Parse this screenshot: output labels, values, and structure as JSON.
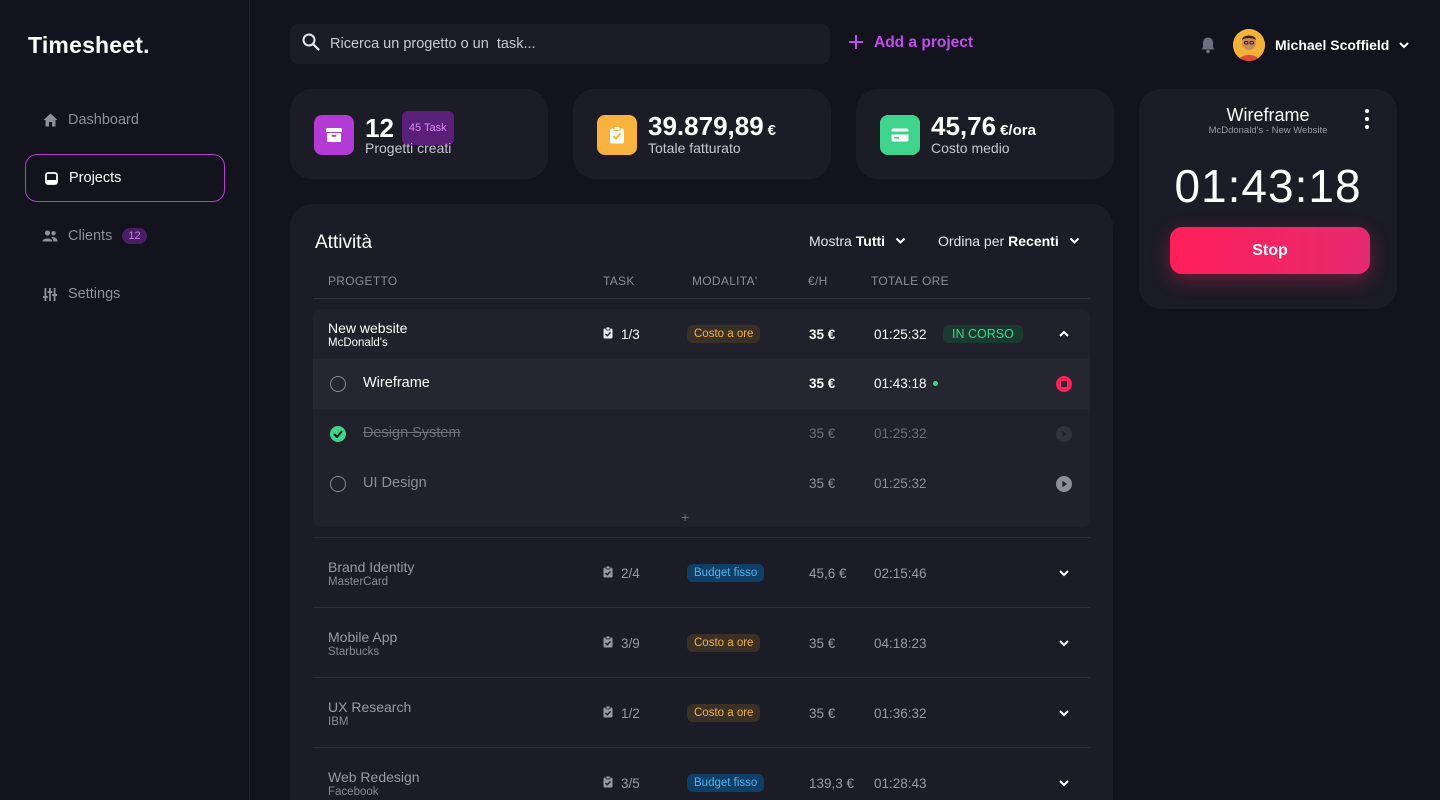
{
  "sidebar": {
    "logo": "Timesheet.",
    "items": [
      {
        "label": "Dashboard",
        "icon": "home-icon"
      },
      {
        "label": "Projects",
        "icon": "inbox-icon",
        "active": true
      },
      {
        "label": "Clients",
        "icon": "users-icon",
        "badge": "12"
      },
      {
        "label": "Settings",
        "icon": "sliders-icon"
      }
    ]
  },
  "topbar": {
    "search_placeholder": "Ricerca un progetto o un  task...",
    "add_project": "Add a project",
    "user_name": "Michael Scoffield"
  },
  "stats": [
    {
      "value": "12",
      "badge": "45 Task",
      "label": "Progetti  creati",
      "color": "#b43ad6"
    },
    {
      "value": "39.879,89",
      "unit": "€",
      "label": "Totale fatturato",
      "color": "#f7b23f"
    },
    {
      "value": "45,76",
      "unit": "€/ora",
      "label": "Costo medio",
      "color": "#3fd48c"
    }
  ],
  "activity": {
    "title": "Attività",
    "filter_show_label": "Mostra",
    "filter_show_value": "Tutti",
    "filter_sort_label": "Ordina per",
    "filter_sort_value": "Recenti",
    "headers": [
      "PROGETTO",
      "TASK",
      "MODALITA'",
      "€/H",
      "TOTALE ORE"
    ],
    "expanded": {
      "name": "New website",
      "client": "McDonald's",
      "tasks": "1/3",
      "mode": "Costo a ore",
      "rate": "35 €",
      "hours": "01:25:32",
      "status": "IN CORSO",
      "subtasks": [
        {
          "name": "Wireframe",
          "rate": "35 €",
          "hours": "01:43:18",
          "state": "running"
        },
        {
          "name": "Design System",
          "rate": "35 €",
          "hours": "01:25:32",
          "state": "done"
        },
        {
          "name": "UI Design",
          "rate": "35 €",
          "hours": "01:25:32",
          "state": "todo"
        }
      ],
      "add": "+"
    },
    "projects": [
      {
        "name": "Brand Identity",
        "client": "MasterCard",
        "tasks": "2/4",
        "mode": "Budget fisso",
        "mode_type": "blue",
        "rate": "45,6 €",
        "hours": "02:15:46"
      },
      {
        "name": "Mobile App",
        "client": "Starbucks",
        "tasks": "3/9",
        "mode": "Costo a ore",
        "mode_type": "orange",
        "rate": "35 €",
        "hours": "04:18:23"
      },
      {
        "name": "UX Research",
        "client": "IBM",
        "tasks": "1/2",
        "mode": "Costo a ore",
        "mode_type": "orange",
        "rate": "35 €",
        "hours": "01:36:32"
      },
      {
        "name": "Web Redesign",
        "client": "Facebook",
        "tasks": "3/5",
        "mode": "Budget fisso",
        "mode_type": "blue",
        "rate": "139,3 €",
        "hours": "01:28:43"
      }
    ]
  },
  "timer": {
    "title": "Wireframe",
    "subtitle": "McDdonald's -  New Website",
    "time": "01:43:18",
    "stop_label": "Stop"
  }
}
